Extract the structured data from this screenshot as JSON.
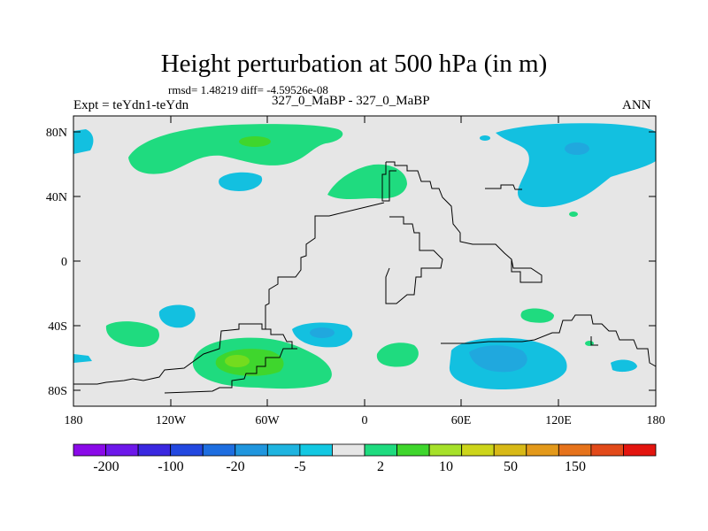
{
  "title": "Height perturbation at 500 hPa (in m)",
  "stats": "rmsd= 1.48219 diff= -4.59526e-08",
  "expt": "Expt = teYdn1-teYdn",
  "cases": "327_0_MaBP - 327_0_MaBP",
  "season": "ANN",
  "axes": {
    "lat_ticks": [
      "80N",
      "40N",
      "0",
      "40S",
      "80S"
    ],
    "lon_ticks": [
      "180",
      "120W",
      "60W",
      "0",
      "60E",
      "120E",
      "180"
    ]
  },
  "colors": {
    "background": "#e6e6e6",
    "green_light": "#1fdb7f",
    "green_mid": "#3fd62d",
    "green_dark": "#74dc1e",
    "blue_light": "#13c0e0",
    "blue_mid": "#20a8de",
    "blue_dark": "#1390d8"
  },
  "colorbar": {
    "colors": [
      "#8a0ae8",
      "#6d18ea",
      "#3a28e0",
      "#2348e0",
      "#1e6ee0",
      "#2096de",
      "#1fb4e0",
      "#13c8e2",
      "#e6e6e6",
      "#1fdb7f",
      "#3fd62d",
      "#a6e12a",
      "#cdd51b",
      "#d8b917",
      "#e3991b",
      "#e6731c",
      "#e24a1a",
      "#e3150f"
    ],
    "labels": [
      "-200",
      "-100",
      "-20",
      "-5",
      "2",
      "10",
      "50",
      "150"
    ]
  },
  "map_features": [
    "perturbation-contours",
    "continent-outline"
  ]
}
